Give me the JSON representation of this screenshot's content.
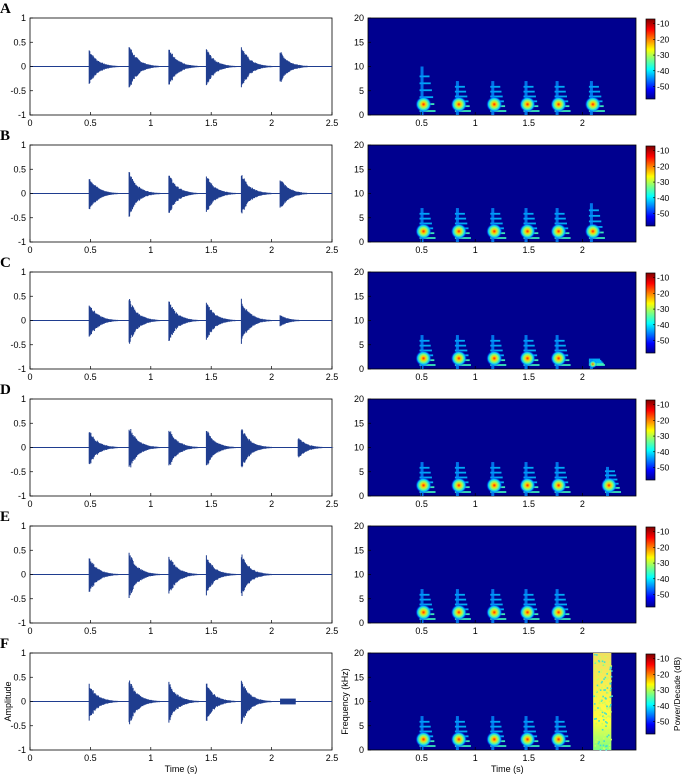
{
  "chart_data": {
    "type": "figure",
    "panels": [
      {
        "label": "A",
        "waveform_bursts": [
          {
            "t": 0.49,
            "amp": 0.38
          },
          {
            "t": 0.82,
            "amp": 0.48
          },
          {
            "t": 1.15,
            "amp": 0.42
          },
          {
            "t": 1.46,
            "amp": 0.4
          },
          {
            "t": 1.75,
            "amp": 0.45
          },
          {
            "t": 2.07,
            "amp": 0.34
          }
        ],
        "spectrogram_bursts": [
          {
            "t": 0.49,
            "fmax": 10
          },
          {
            "t": 0.82,
            "fmax": 7
          },
          {
            "t": 1.15,
            "fmax": 7
          },
          {
            "t": 1.46,
            "fmax": 7
          },
          {
            "t": 1.75,
            "fmax": 7
          },
          {
            "t": 2.07,
            "fmax": 7
          }
        ]
      },
      {
        "label": "B",
        "waveform_bursts": [
          {
            "t": 0.49,
            "amp": 0.38
          },
          {
            "t": 0.82,
            "amp": 0.48
          },
          {
            "t": 1.15,
            "amp": 0.42
          },
          {
            "t": 1.46,
            "amp": 0.4
          },
          {
            "t": 1.75,
            "amp": 0.45
          },
          {
            "t": 2.07,
            "amp": 0.34
          }
        ],
        "spectrogram_bursts": [
          {
            "t": 0.49,
            "fmax": 7
          },
          {
            "t": 0.82,
            "fmax": 7
          },
          {
            "t": 1.15,
            "fmax": 7
          },
          {
            "t": 1.46,
            "fmax": 7
          },
          {
            "t": 1.75,
            "fmax": 7
          },
          {
            "t": 2.07,
            "fmax": 8
          }
        ]
      },
      {
        "label": "C",
        "waveform_bursts": [
          {
            "t": 0.49,
            "amp": 0.38
          },
          {
            "t": 0.82,
            "amp": 0.48
          },
          {
            "t": 1.15,
            "amp": 0.42
          },
          {
            "t": 1.46,
            "amp": 0.4
          },
          {
            "t": 1.75,
            "amp": 0.45
          },
          {
            "t": 2.07,
            "amp": 0.12
          }
        ],
        "spectrogram_bursts": [
          {
            "t": 0.49,
            "fmax": 7
          },
          {
            "t": 0.82,
            "fmax": 7
          },
          {
            "t": 1.15,
            "fmax": 7
          },
          {
            "t": 1.46,
            "fmax": 7
          },
          {
            "t": 1.75,
            "fmax": 7
          },
          {
            "t": 2.07,
            "fmax": 2
          }
        ]
      },
      {
        "label": "D",
        "waveform_bursts": [
          {
            "t": 0.49,
            "amp": 0.38
          },
          {
            "t": 0.82,
            "amp": 0.48
          },
          {
            "t": 1.15,
            "amp": 0.42
          },
          {
            "t": 1.46,
            "amp": 0.4
          },
          {
            "t": 1.75,
            "amp": 0.45
          },
          {
            "t": 2.22,
            "amp": 0.22
          }
        ],
        "spectrogram_bursts": [
          {
            "t": 0.49,
            "fmax": 7
          },
          {
            "t": 0.82,
            "fmax": 7
          },
          {
            "t": 1.15,
            "fmax": 7
          },
          {
            "t": 1.46,
            "fmax": 7
          },
          {
            "t": 1.75,
            "fmax": 7
          },
          {
            "t": 2.22,
            "fmax": 6
          }
        ]
      },
      {
        "label": "E",
        "waveform_bursts": [
          {
            "t": 0.49,
            "amp": 0.38
          },
          {
            "t": 0.82,
            "amp": 0.48
          },
          {
            "t": 1.15,
            "amp": 0.42
          },
          {
            "t": 1.46,
            "amp": 0.4
          },
          {
            "t": 1.75,
            "amp": 0.45
          }
        ],
        "spectrogram_bursts": [
          {
            "t": 0.49,
            "fmax": 7
          },
          {
            "t": 0.82,
            "fmax": 7
          },
          {
            "t": 1.15,
            "fmax": 7
          },
          {
            "t": 1.46,
            "fmax": 7
          },
          {
            "t": 1.75,
            "fmax": 7
          }
        ]
      },
      {
        "label": "F",
        "waveform_bursts": [
          {
            "t": 0.49,
            "amp": 0.38
          },
          {
            "t": 0.82,
            "amp": 0.48
          },
          {
            "t": 1.15,
            "amp": 0.42
          },
          {
            "t": 1.46,
            "amp": 0.4
          },
          {
            "t": 1.75,
            "amp": 0.45
          }
        ],
        "noise_block": {
          "t0": 2.07,
          "t1": 2.2,
          "amp": 0.06
        },
        "spectrogram_bursts": [
          {
            "t": 0.49,
            "fmax": 7
          },
          {
            "t": 0.82,
            "fmax": 7
          },
          {
            "t": 1.15,
            "fmax": 7
          },
          {
            "t": 1.46,
            "fmax": 7
          },
          {
            "t": 1.75,
            "fmax": 7
          }
        ],
        "spectrogram_noise": {
          "t0": 2.1,
          "t1": 2.27,
          "fmax": 20
        },
        "waveform_ylabel": "Amplitude",
        "waveform_xlabel": "Time (s)",
        "spectrogram_ylabel": "Frequency (kHz)",
        "spectrogram_xlabel": "Time (s)",
        "colorbar_label": "Power/Decade (dB)"
      }
    ],
    "waveform_axis": {
      "xlim": [
        0,
        2.5
      ],
      "ylim": [
        -1,
        1
      ],
      "xticks": [
        "0",
        "0.5",
        "1",
        "1.5",
        "2",
        "2.5"
      ],
      "yticks": [
        "1",
        "0.5",
        "0",
        "-0.5",
        "-1"
      ]
    },
    "spectrogram_axis": {
      "xlim": [
        0,
        2.5
      ],
      "ylim": [
        0,
        20
      ],
      "xticks": [
        "0.5",
        "1",
        "1.5",
        "2"
      ],
      "yticks": [
        "20",
        "15",
        "10",
        "5",
        "0"
      ]
    },
    "colorbar": {
      "range": [
        -58,
        -7
      ],
      "ticks": [
        "-10",
        "-20",
        "-30",
        "-40",
        "-50"
      ]
    },
    "colors": {
      "waveform": "#1f3d8f",
      "spectrogram_bg": "#00008f"
    }
  }
}
